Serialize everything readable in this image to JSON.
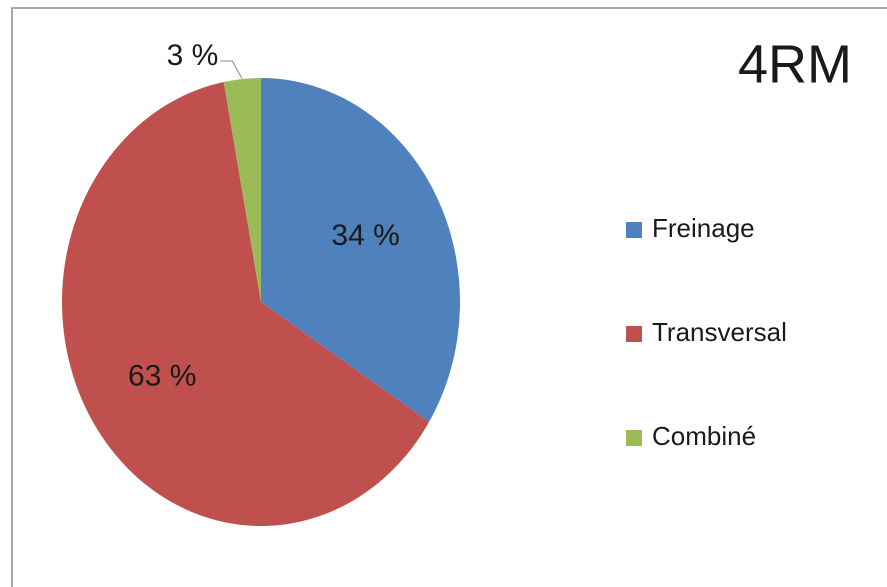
{
  "chart_data": {
    "type": "pie",
    "title": "4RM",
    "categories": [
      "Freinage",
      "Transversal",
      "Combiné"
    ],
    "values": [
      34,
      63,
      3
    ],
    "value_labels": [
      "34 %",
      "63 %",
      "3 %"
    ],
    "colors": [
      "#4f81bd",
      "#c0504d",
      "#9bbb59"
    ],
    "legend": "right"
  }
}
